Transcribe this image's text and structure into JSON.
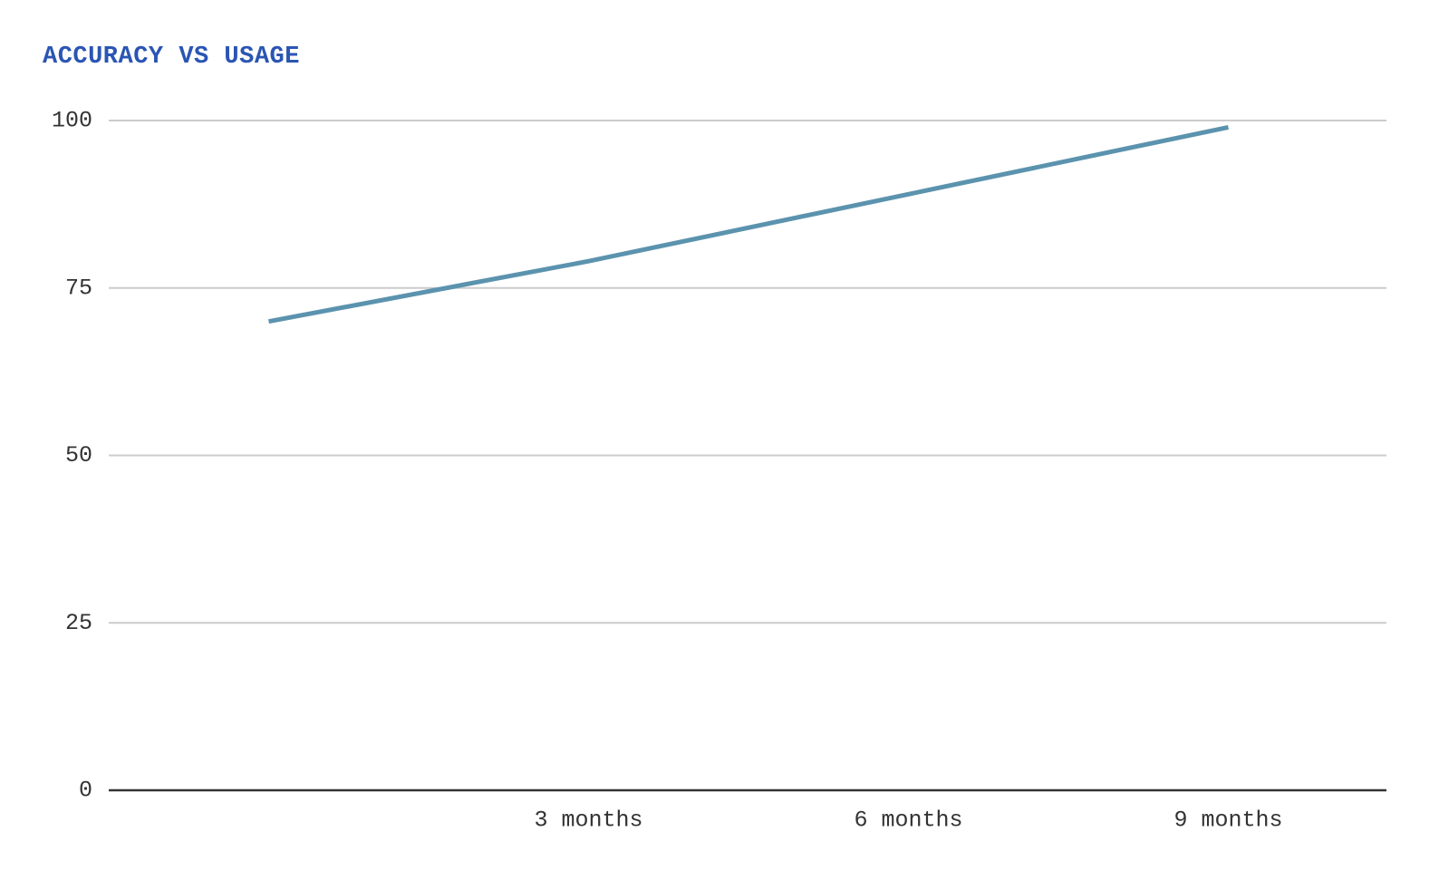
{
  "chart_data": {
    "type": "line",
    "title": "ACCURACY VS USAGE",
    "xlabel": "",
    "ylabel": "",
    "categories": [
      "",
      "3 months",
      "6 months",
      "9 months"
    ],
    "series": [
      {
        "values": [
          70,
          79,
          89,
          99
        ]
      }
    ],
    "ylim": [
      0,
      100
    ],
    "yticks": [
      0,
      25,
      50,
      75,
      100
    ],
    "grid": true,
    "legend": "none",
    "colors": {
      "line": "#5b93ae",
      "grid": "#cccccc",
      "axis": "#333333",
      "title": "#2a55b3",
      "text": "#333333"
    }
  }
}
